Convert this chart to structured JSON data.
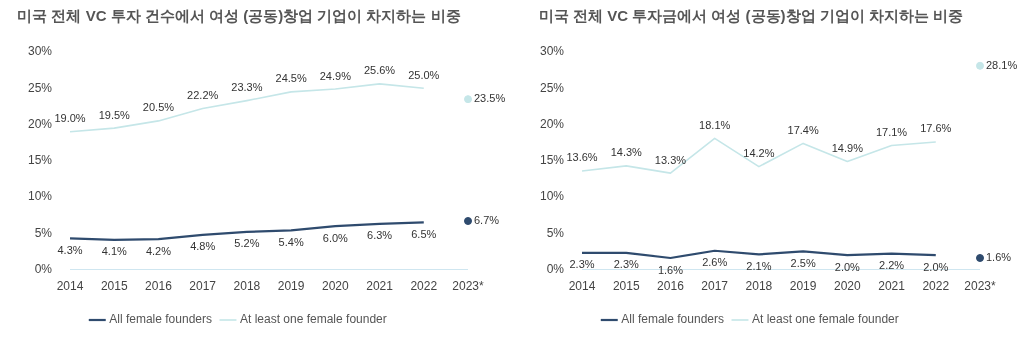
{
  "chart_data": [
    {
      "type": "line",
      "title": "미국 전체 VC 투자 건수에서 여성 (공동)창업 기업이 차지하는 비중",
      "categories": [
        "2014",
        "2015",
        "2016",
        "2017",
        "2018",
        "2019",
        "2020",
        "2021",
        "2022",
        "2023*"
      ],
      "series": [
        {
          "name": "All female founders",
          "color": "#2f4b6e",
          "values": [
            4.3,
            4.1,
            4.2,
            4.8,
            5.2,
            5.4,
            6.0,
            6.3,
            6.5,
            null
          ],
          "value_labels": [
            "4.3%",
            "4.1%",
            "4.2%",
            "4.8%",
            "5.2%",
            "5.4%",
            "6.0%",
            "6.3%",
            "6.5%",
            null
          ]
        },
        {
          "name": "At least one female founder",
          "color": "#c5e6e8",
          "values": [
            19.0,
            19.5,
            20.5,
            22.2,
            23.3,
            24.5,
            24.9,
            25.6,
            25.0,
            null
          ],
          "value_labels": [
            "19.0%",
            "19.5%",
            "20.5%",
            "22.2%",
            "23.3%",
            "24.5%",
            "24.9%",
            "25.6%",
            "25.0%",
            null
          ]
        },
        {
          "type": "scatter",
          "color": "#2f4b6e",
          "marker": "circle",
          "x": [
            "2023*"
          ],
          "values": [
            6.7
          ],
          "value_labels": [
            "6.7%"
          ]
        },
        {
          "type": "scatter",
          "color": "#c5e6e8",
          "marker": "circle",
          "x": [
            "2023*"
          ],
          "values": [
            23.5
          ],
          "value_labels": [
            "23.5%"
          ]
        }
      ],
      "ylim": [
        0,
        30
      ],
      "yticks": [
        {
          "value": 0,
          "label": "0%"
        },
        {
          "value": 5,
          "label": "5%"
        },
        {
          "value": 10,
          "label": "10%"
        },
        {
          "value": 15,
          "label": "15%"
        },
        {
          "value": 20,
          "label": "20%"
        },
        {
          "value": 25,
          "label": "25%"
        },
        {
          "value": 30,
          "label": "30%"
        }
      ],
      "grid": false,
      "legend": "bottom"
    },
    {
      "type": "line",
      "title": "미국 전체 VC 투자금에서 여성 (공동)창업 기업이 차지하는 비중",
      "categories": [
        "2014",
        "2015",
        "2016",
        "2017",
        "2018",
        "2019",
        "2020",
        "2021",
        "2022",
        "2023*"
      ],
      "series": [
        {
          "name": "All female founders",
          "color": "#2f4b6e",
          "values": [
            2.3,
            2.3,
            1.6,
            2.6,
            2.1,
            2.5,
            2.0,
            2.2,
            2.0,
            null
          ],
          "value_labels": [
            "2.3%",
            "2.3%",
            "1.6%",
            "2.6%",
            "2.1%",
            "2.5%",
            "2.0%",
            "2.2%",
            "2.0%",
            null
          ]
        },
        {
          "name": "At least one female founder",
          "color": "#c5e6e8",
          "values": [
            13.6,
            14.3,
            13.3,
            18.1,
            14.2,
            17.4,
            14.9,
            17.1,
            17.6,
            null
          ],
          "value_labels": [
            "13.6%",
            "14.3%",
            "13.3%",
            "18.1%",
            "14.2%",
            "17.4%",
            "14.9%",
            "17.1%",
            "17.6%",
            null
          ]
        },
        {
          "type": "scatter",
          "color": "#2f4b6e",
          "marker": "circle",
          "x": [
            "2023*"
          ],
          "values": [
            1.6
          ],
          "value_labels": [
            "1.6%"
          ]
        },
        {
          "type": "scatter",
          "color": "#c5e6e8",
          "marker": "circle",
          "x": [
            "2023*"
          ],
          "values": [
            28.1
          ],
          "value_labels": [
            "28.1%"
          ]
        }
      ],
      "ylim": [
        0,
        30
      ],
      "yticks": [
        {
          "value": 0,
          "label": "0%"
        },
        {
          "value": 5,
          "label": "5%"
        },
        {
          "value": 10,
          "label": "10%"
        },
        {
          "value": 15,
          "label": "15%"
        },
        {
          "value": 20,
          "label": "20%"
        },
        {
          "value": 25,
          "label": "25%"
        },
        {
          "value": 30,
          "label": "30%"
        }
      ],
      "grid": false,
      "legend": "bottom"
    }
  ]
}
